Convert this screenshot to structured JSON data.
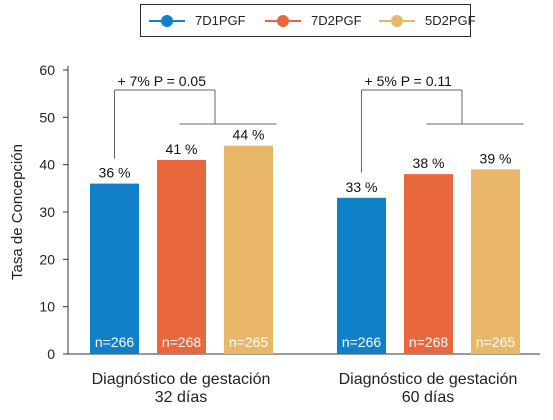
{
  "colors": {
    "7D1PGF": "#1080c8",
    "7D2PGF": "#e8673d",
    "5D2PGF": "#e9b768"
  },
  "legend": [
    {
      "label": "7D1PGF",
      "color": "#1080c8"
    },
    {
      "label": "7D2PGF",
      "color": "#e8673d"
    },
    {
      "label": "5D2PGF",
      "color": "#e9b768"
    }
  ],
  "chart_data": {
    "type": "bar",
    "ylabel": "Tasa de Concepción",
    "ylim": [
      0,
      60
    ],
    "yticks": [
      "0",
      "10",
      "20",
      "30",
      "40",
      "50",
      "60"
    ],
    "grid": false,
    "legend_position": "top",
    "groups": [
      {
        "label_line1": "Diagnóstico de gestación",
        "label_line2": "32 días",
        "annotation": "+ 7%  P = 0.05",
        "bars": [
          {
            "series": "7D1PGF",
            "value": 36,
            "label": "36 %",
            "n": "n=266",
            "color": "#1080c8"
          },
          {
            "series": "7D2PGF",
            "value": 41,
            "label": "41 %",
            "n": "n=268",
            "color": "#e8673d"
          },
          {
            "series": "5D2PGF",
            "value": 44,
            "label": "44 %",
            "n": "n=265",
            "color": "#e9b768"
          }
        ]
      },
      {
        "label_line1": "Diagnóstico de gestación",
        "label_line2": "60 días",
        "annotation": "+ 5%  P = 0.11",
        "bars": [
          {
            "series": "7D1PGF",
            "value": 33,
            "label": "33 %",
            "n": "n=266",
            "color": "#1080c8"
          },
          {
            "series": "7D2PGF",
            "value": 38,
            "label": "38 %",
            "n": "n=268",
            "color": "#e8673d"
          },
          {
            "series": "5D2PGF",
            "value": 39,
            "label": "39 %",
            "n": "n=265",
            "color": "#e9b768"
          }
        ]
      }
    ]
  }
}
